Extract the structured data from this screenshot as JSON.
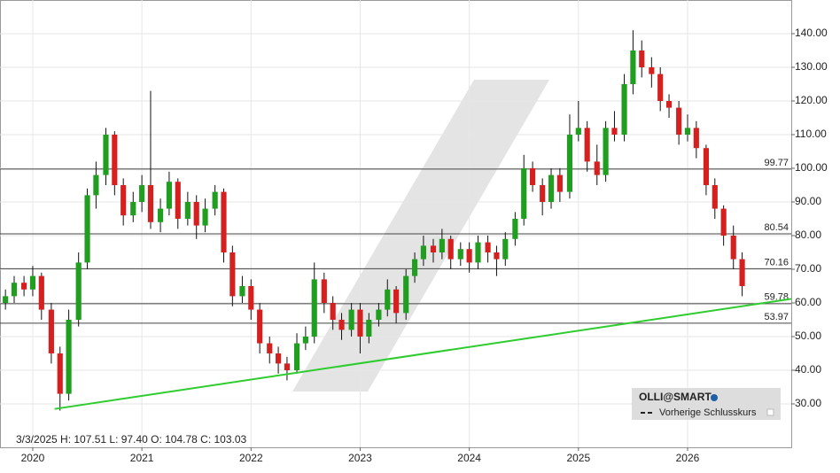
{
  "chart_data": {
    "type": "candlestick",
    "info": "3/3/2025   H: 107.51   L: 97.40   O: 104.78   C: 103.03",
    "up_color": "#1f9e1f",
    "down_color": "#d62020",
    "x": [
      2019.75,
      2019.83,
      2019.92,
      2020.0,
      2020.08,
      2020.17,
      2020.25,
      2020.33,
      2020.42,
      2020.5,
      2020.58,
      2020.67,
      2020.75,
      2020.83,
      2020.92,
      2021.0,
      2021.08,
      2021.17,
      2021.25,
      2021.33,
      2021.42,
      2021.5,
      2021.58,
      2021.67,
      2021.75,
      2021.83,
      2021.92,
      2022.0,
      2022.08,
      2022.17,
      2022.25,
      2022.33,
      2022.42,
      2022.5,
      2022.58,
      2022.67,
      2022.75,
      2022.83,
      2022.92,
      2023.0,
      2023.08,
      2023.17,
      2023.25,
      2023.33,
      2023.42,
      2023.5,
      2023.58,
      2023.67,
      2023.75,
      2023.83,
      2023.92,
      2024.0,
      2024.08,
      2024.17,
      2024.25,
      2024.33,
      2024.42,
      2024.5,
      2024.58,
      2024.67,
      2024.75,
      2024.83,
      2024.92,
      2025.0,
      2025.08,
      2025.17,
      2025.25,
      2025.33,
      2025.42,
      2025.5,
      2025.58,
      2025.67,
      2025.75,
      2025.83,
      2025.92,
      2026.0,
      2026.08,
      2026.17,
      2026.25,
      2026.33,
      2026.42,
      2026.5
    ],
    "open": [
      60,
      62,
      66,
      64,
      68,
      58,
      45,
      33,
      55,
      72,
      92,
      98,
      110,
      95,
      86,
      90,
      95,
      84,
      88,
      96,
      85,
      90,
      83,
      88,
      93,
      75,
      62,
      65,
      58,
      48,
      45,
      42,
      40,
      48,
      50,
      67,
      60,
      55,
      52,
      58,
      50,
      55,
      58,
      64,
      57,
      68,
      73,
      77,
      75,
      79,
      73,
      76,
      72,
      78,
      75,
      73,
      79,
      85,
      100,
      95,
      90,
      98,
      93,
      110,
      112,
      102,
      98,
      112,
      110,
      125,
      135,
      130,
      128,
      120,
      118,
      110,
      112,
      106,
      95,
      88,
      80,
      73
    ],
    "high": [
      64,
      68,
      68,
      71,
      69,
      60,
      47,
      58,
      75,
      94,
      102,
      112,
      111,
      97,
      93,
      98,
      123,
      91,
      99,
      97,
      93,
      92,
      91,
      95,
      94,
      77,
      68,
      67,
      60,
      50,
      47,
      44,
      51,
      53,
      72,
      69,
      62,
      57,
      60,
      60,
      57,
      60,
      67,
      65,
      70,
      75,
      80,
      79,
      82,
      80,
      78,
      78,
      80,
      80,
      77,
      81,
      87,
      104,
      102,
      97,
      100,
      100,
      116,
      120,
      114,
      107,
      114,
      117,
      128,
      141,
      138,
      133,
      130,
      122,
      120,
      116,
      114,
      107,
      97,
      89,
      83,
      75
    ],
    "low": [
      58,
      60,
      62,
      62,
      55,
      42,
      28,
      31,
      53,
      70,
      88,
      95,
      92,
      83,
      84,
      87,
      82,
      81,
      86,
      82,
      83,
      79,
      81,
      86,
      72,
      59,
      60,
      55,
      45,
      42,
      39,
      37,
      39,
      46,
      48,
      57,
      52,
      49,
      50,
      45,
      48,
      53,
      56,
      54,
      55,
      66,
      71,
      72,
      73,
      70,
      71,
      69,
      70,
      72,
      68,
      71,
      77,
      83,
      93,
      86,
      88,
      90,
      91,
      108,
      99,
      95,
      96,
      108,
      108,
      122,
      127,
      124,
      117,
      115,
      107,
      108,
      103,
      92,
      85,
      77,
      70,
      62
    ],
    "close": [
      62,
      66,
      64,
      68,
      58,
      45,
      33,
      55,
      72,
      92,
      98,
      110,
      95,
      86,
      90,
      95,
      84,
      88,
      96,
      85,
      90,
      83,
      88,
      93,
      75,
      62,
      65,
      58,
      48,
      45,
      42,
      40,
      48,
      50,
      67,
      60,
      55,
      52,
      58,
      50,
      55,
      58,
      64,
      57,
      68,
      73,
      77,
      75,
      79,
      73,
      76,
      72,
      78,
      75,
      73,
      79,
      85,
      100,
      95,
      90,
      98,
      93,
      110,
      112,
      102,
      98,
      112,
      110,
      125,
      135,
      130,
      128,
      120,
      118,
      110,
      112,
      106,
      95,
      88,
      80,
      73,
      65
    ],
    "levels": [
      99.77,
      80.54,
      70.16,
      59.78,
      53.97
    ],
    "trendline": {
      "color": "#2ecc2e",
      "x": [
        2020.2,
        2026.95
      ],
      "y": [
        28.5,
        61.2
      ]
    },
    "xlim": [
      2019.7,
      2026.95
    ],
    "xticks": [
      2020,
      2021,
      2022,
      2023,
      2024,
      2025,
      2026
    ],
    "ylim": [
      17.1,
      150
    ],
    "yticks": [
      {
        "value": 30,
        "label": "30.00"
      },
      {
        "value": 40,
        "label": "40.00"
      },
      {
        "value": 50,
        "label": "50.00"
      },
      {
        "value": 60,
        "label": "60.00"
      },
      {
        "value": 70,
        "label": "70.00"
      },
      {
        "value": 80,
        "label": "80.00"
      },
      {
        "value": 90,
        "label": "90.00"
      },
      {
        "value": 100,
        "label": "100.00"
      },
      {
        "value": 110,
        "label": "110.00"
      },
      {
        "value": 120,
        "label": "120.00"
      },
      {
        "value": 130,
        "label": "130.00"
      },
      {
        "value": 140,
        "label": "140.00"
      }
    ],
    "grid": true,
    "legend": {
      "corner": "bottom-right",
      "title": "OLLI@SMART",
      "items": [
        "Vorherige Schlusskurs"
      ]
    }
  }
}
